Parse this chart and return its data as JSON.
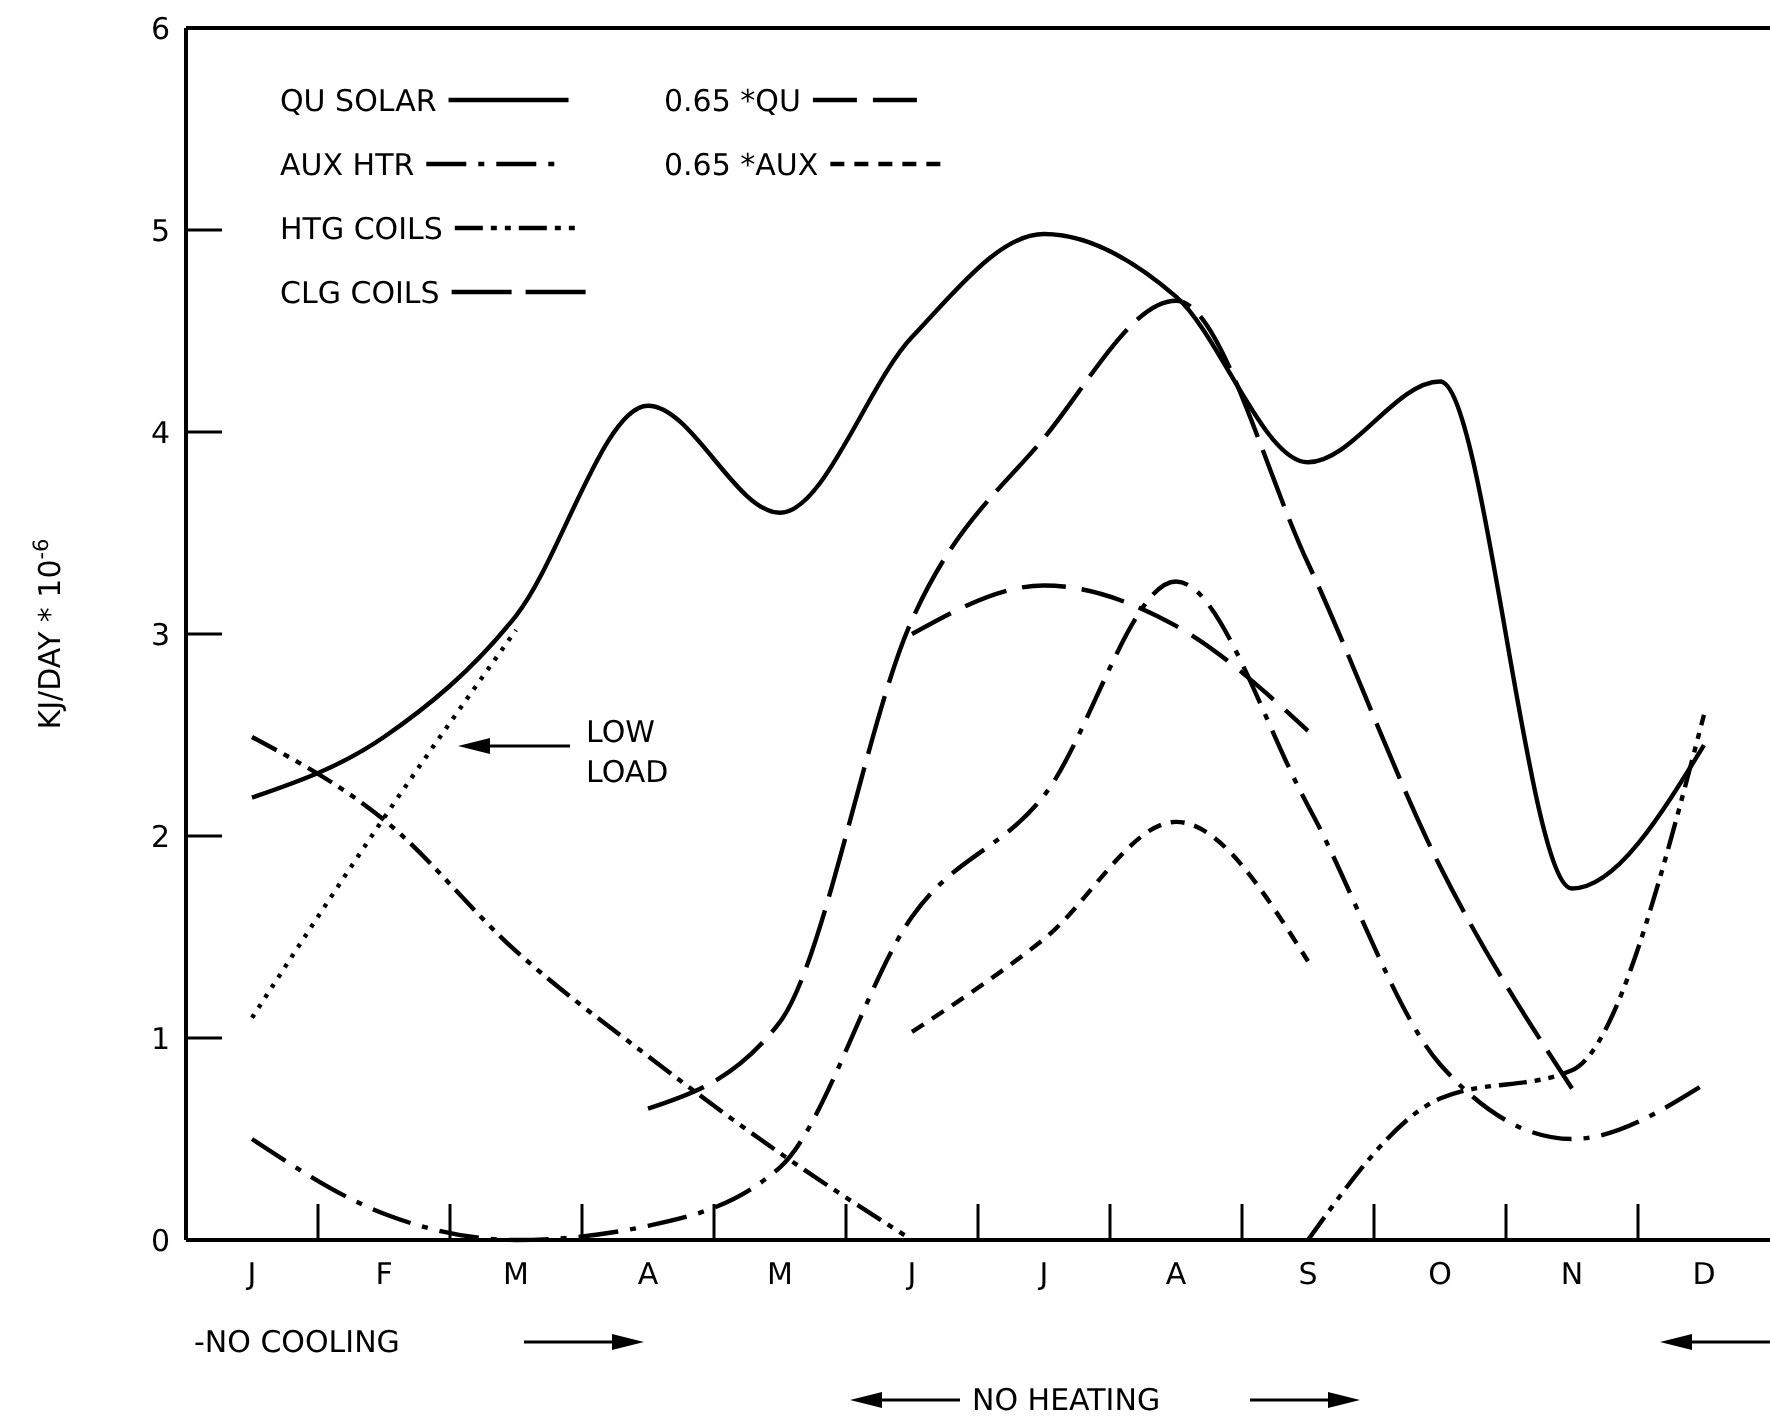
{
  "chart_data": {
    "type": "line",
    "ylabel": "KJ/DAY * 10$^{-6}$",
    "categories": [
      "J",
      "F",
      "M",
      "A",
      "M",
      "J",
      "J",
      "A",
      "S",
      "O",
      "N",
      "D"
    ],
    "ylim": [
      0,
      6
    ],
    "yticks": [
      0,
      1,
      2,
      3,
      4,
      5,
      6
    ],
    "legend": "top left",
    "series": [
      {
        "name": "QU SOLAR",
        "color": "#000000",
        "line_style": "solid",
        "values": [
          2.19,
          2.49,
          3.09,
          4.13,
          3.6,
          4.47,
          4.98,
          4.67,
          3.85,
          4.25,
          1.74,
          2.45
        ]
      },
      {
        "name": "0.65 *QU",
        "color": "#000000",
        "line_style": "dashed",
        "values": [
          null,
          null,
          null,
          null,
          null,
          3.0,
          3.24,
          3.04,
          2.52,
          null,
          null,
          null
        ]
      },
      {
        "name": "AUX HTR",
        "color": "#000000",
        "line_style": "dashdot",
        "values": [
          0.5,
          0.13,
          0,
          0.07,
          0.36,
          1.6,
          2.2,
          3.26,
          2.15,
          0.87,
          0.5,
          0.77
        ]
      },
      {
        "name": "0.65 *AUX",
        "color": "#000000",
        "line_style": "shortdash",
        "values": [
          null,
          null,
          null,
          null,
          null,
          1.03,
          1.49,
          2.07,
          1.38,
          null,
          null,
          null
        ]
      },
      {
        "name": "HTG COILS",
        "color": "#000000",
        "line_style": "dashdotdot",
        "values": [
          2.49,
          2.08,
          1.43,
          0.91,
          0.43,
          0,
          null,
          null,
          0,
          0.7,
          0.84,
          2.6
        ]
      },
      {
        "name": "CLG COILS",
        "color": "#000000",
        "line_style": "longdash",
        "values": [
          null,
          null,
          null,
          0.65,
          1.08,
          3.07,
          3.97,
          4.65,
          3.35,
          1.85,
          0.75,
          null
        ]
      },
      {
        "color": "#000000",
        "line_style": "dotted",
        "values": [
          1.1,
          2.09,
          3.02,
          null,
          null,
          null,
          null,
          null,
          null,
          null,
          null,
          null
        ]
      }
    ],
    "annotations": [
      "LOW LOAD",
      "-NO COOLING",
      "NO HEATING"
    ]
  }
}
